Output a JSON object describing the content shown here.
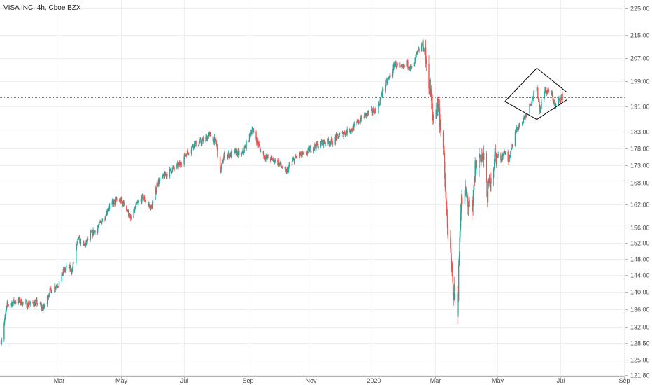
{
  "chart_data": {
    "type": "candlestick",
    "title": "VISA INC, 4h, Cboe BZX",
    "xlabel": "",
    "ylabel": "",
    "ylim": [
      121.8,
      227
    ],
    "y_scale": "log",
    "grid": true,
    "current_price": 193.82,
    "current_price_label": "193.82",
    "colors": {
      "up": "#26a69a",
      "down": "#ef5350",
      "price_line": "#ef5350",
      "pattern": "#000000"
    },
    "x_ticks": [
      {
        "label": "Mar",
        "date": "2019-03-01"
      },
      {
        "label": "May",
        "date": "2019-05-01"
      },
      {
        "label": "Jul",
        "date": "2019-07-01"
      },
      {
        "label": "Sep",
        "date": "2019-09-01"
      },
      {
        "label": "Nov",
        "date": "2019-11-01"
      },
      {
        "label": "2020",
        "date": "2020-01-01"
      },
      {
        "label": "Mar",
        "date": "2020-03-01"
      },
      {
        "label": "May",
        "date": "2020-05-01"
      },
      {
        "label": "Jul",
        "date": "2020-07-01"
      },
      {
        "label": "Sep",
        "date": "2020-09-01"
      }
    ],
    "y_ticks": [
      "225.00",
      "215.00",
      "207.00",
      "199.00",
      "191.00",
      "183.00",
      "178.00",
      "173.00",
      "168.00",
      "162.00",
      "156.00",
      "152.00",
      "148.00",
      "144.00",
      "140.00",
      "136.00",
      "132.00",
      "128.50",
      "125.00",
      "121.80"
    ],
    "x_range": [
      "2019-01-03",
      "2020-09-28"
    ],
    "price_path": [
      [
        "2019-01-04",
        129
      ],
      [
        "2019-01-10",
        137
      ],
      [
        "2019-01-20",
        138
      ],
      [
        "2019-01-30",
        137
      ],
      [
        "2019-02-08",
        137.5
      ],
      [
        "2019-02-14",
        136
      ],
      [
        "2019-02-20",
        140
      ],
      [
        "2019-03-01",
        142
      ],
      [
        "2019-03-06",
        145
      ],
      [
        "2019-03-10",
        146
      ],
      [
        "2019-03-14",
        145
      ],
      [
        "2019-03-20",
        153
      ],
      [
        "2019-03-26",
        151
      ],
      [
        "2019-04-01",
        154
      ],
      [
        "2019-04-08",
        156
      ],
      [
        "2019-04-15",
        159
      ],
      [
        "2019-04-20",
        162
      ],
      [
        "2019-04-26",
        163
      ],
      [
        "2019-05-01",
        163
      ],
      [
        "2019-05-06",
        161
      ],
      [
        "2019-05-10",
        158
      ],
      [
        "2019-05-16",
        162
      ],
      [
        "2019-05-22",
        164
      ],
      [
        "2019-05-30",
        161
      ],
      [
        "2019-06-05",
        168
      ],
      [
        "2019-06-12",
        170
      ],
      [
        "2019-06-20",
        172
      ],
      [
        "2019-06-26",
        173
      ],
      [
        "2019-07-02",
        176
      ],
      [
        "2019-07-10",
        179
      ],
      [
        "2019-07-18",
        180
      ],
      [
        "2019-07-26",
        182
      ],
      [
        "2019-08-01",
        180
      ],
      [
        "2019-08-05",
        171
      ],
      [
        "2019-08-09",
        176
      ],
      [
        "2019-08-15",
        176
      ],
      [
        "2019-08-20",
        177
      ],
      [
        "2019-08-26",
        176
      ],
      [
        "2019-09-01",
        180
      ],
      [
        "2019-09-05",
        184
      ],
      [
        "2019-09-09",
        181
      ],
      [
        "2019-09-15",
        176
      ],
      [
        "2019-09-22",
        175
      ],
      [
        "2019-09-30",
        174
      ],
      [
        "2019-10-08",
        171
      ],
      [
        "2019-10-14",
        174
      ],
      [
        "2019-10-20",
        176
      ],
      [
        "2019-10-26",
        176
      ],
      [
        "2019-11-01",
        178
      ],
      [
        "2019-11-08",
        179
      ],
      [
        "2019-11-15",
        180
      ],
      [
        "2019-11-22",
        180
      ],
      [
        "2019-11-30",
        182
      ],
      [
        "2019-12-06",
        183
      ],
      [
        "2019-12-12",
        184
      ],
      [
        "2019-12-20",
        187
      ],
      [
        "2019-12-28",
        189
      ],
      [
        "2020-01-05",
        190
      ],
      [
        "2020-01-10",
        196
      ],
      [
        "2020-01-16",
        200
      ],
      [
        "2020-01-22",
        205
      ],
      [
        "2020-01-28",
        203
      ],
      [
        "2020-02-03",
        205
      ],
      [
        "2020-02-08",
        203
      ],
      [
        "2020-02-12",
        208
      ],
      [
        "2020-02-18",
        212
      ],
      [
        "2020-02-21",
        207
      ],
      [
        "2020-02-25",
        197
      ],
      [
        "2020-02-28",
        187
      ],
      [
        "2020-03-04",
        192
      ],
      [
        "2020-03-09",
        178
      ],
      [
        "2020-03-12",
        160
      ],
      [
        "2020-03-16",
        148
      ],
      [
        "2020-03-19",
        140
      ],
      [
        "2020-03-23",
        136
      ],
      [
        "2020-03-26",
        162
      ],
      [
        "2020-03-31",
        165
      ],
      [
        "2020-04-06",
        158
      ],
      [
        "2020-04-09",
        172
      ],
      [
        "2020-04-14",
        176
      ],
      [
        "2020-04-17",
        175
      ],
      [
        "2020-04-21",
        165
      ],
      [
        "2020-04-24",
        170
      ],
      [
        "2020-04-29",
        176
      ],
      [
        "2020-05-04",
        175
      ],
      [
        "2020-05-08",
        177
      ],
      [
        "2020-05-12",
        174
      ],
      [
        "2020-05-18",
        183
      ],
      [
        "2020-05-22",
        185
      ],
      [
        "2020-05-28",
        188
      ],
      [
        "2020-06-03",
        193
      ],
      [
        "2020-06-08",
        197
      ],
      [
        "2020-06-11",
        190
      ],
      [
        "2020-06-16",
        196
      ],
      [
        "2020-06-22",
        195
      ],
      [
        "2020-06-26",
        191
      ],
      [
        "2020-06-30",
        193
      ],
      [
        "2020-07-03",
        194
      ]
    ],
    "pattern_lines": [
      {
        "from": [
          "2020-05-08",
          192.5
        ],
        "to": [
          "2020-06-08",
          203.5
        ]
      },
      {
        "from": [
          "2020-06-08",
          203.5
        ],
        "to": [
          "2020-07-07",
          195.5
        ]
      },
      {
        "from": [
          "2020-05-08",
          192.5
        ],
        "to": [
          "2020-06-08",
          186.8
        ]
      },
      {
        "from": [
          "2020-06-08",
          186.8
        ],
        "to": [
          "2020-07-07",
          193.0
        ]
      }
    ]
  }
}
